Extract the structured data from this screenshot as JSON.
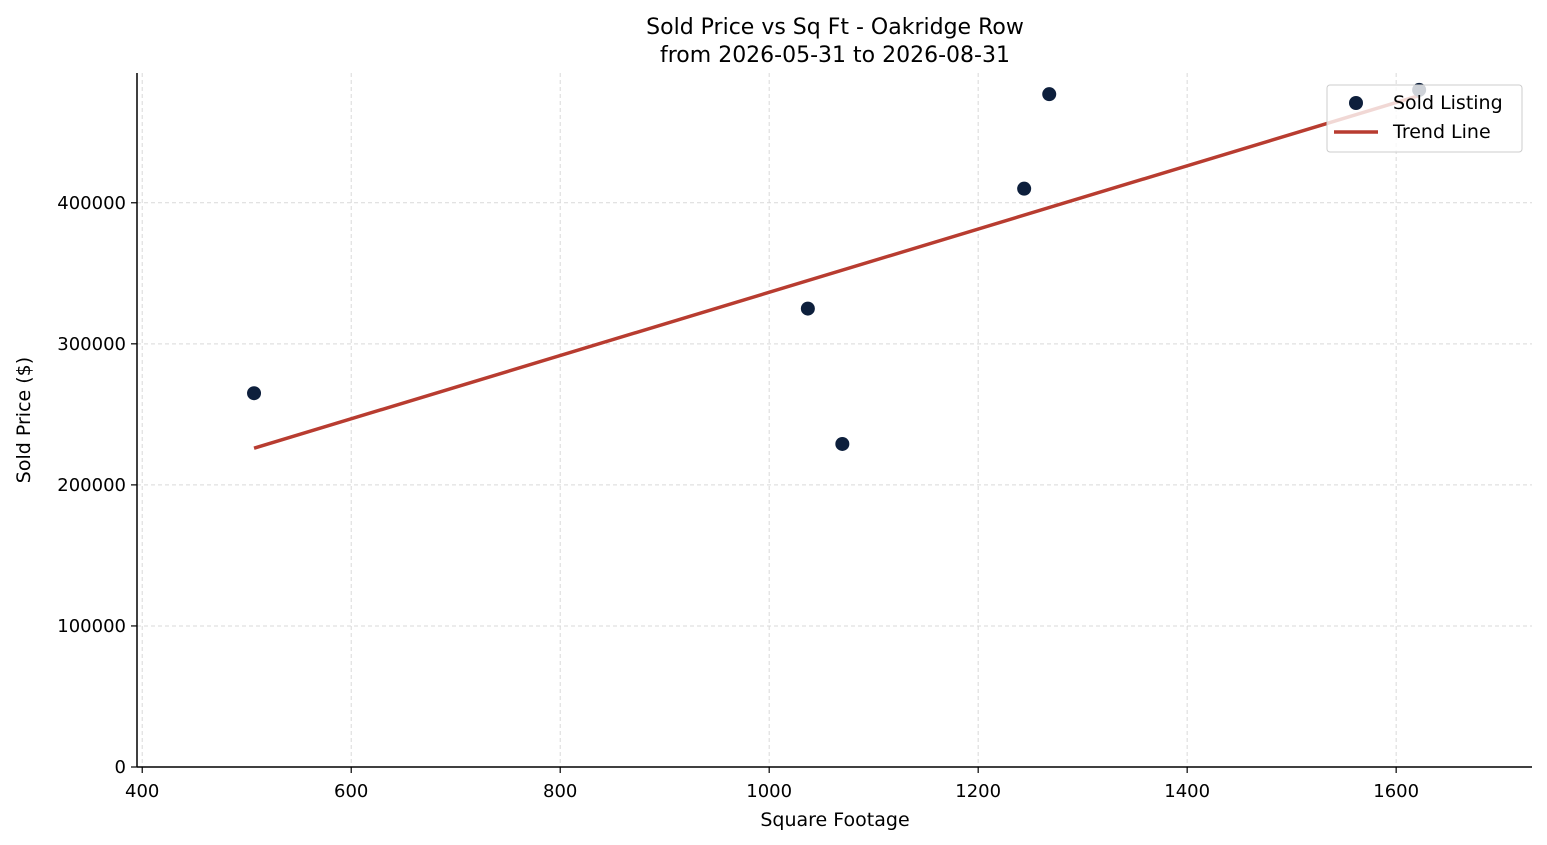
{
  "chart_data": {
    "type": "scatter",
    "title": "Sold Price vs Sq Ft - Oakridge Row",
    "subtitle": "from 2026-05-31 to 2026-08-31",
    "xlabel": "Square Footage",
    "ylabel": "Sold Price ($)",
    "xlim": [
      395,
      1730
    ],
    "ylim": [
      0,
      492000
    ],
    "xticks": [
      400,
      600,
      800,
      1000,
      1200,
      1400,
      1600
    ],
    "yticks": [
      0,
      100000,
      200000,
      300000,
      400000
    ],
    "grid": true,
    "legend_position": "top-right",
    "series": [
      {
        "name": "Sold Listing",
        "kind": "scatter",
        "color": "#0d1f3c",
        "points": [
          {
            "x": 507,
            "y": 265000
          },
          {
            "x": 1037,
            "y": 325000
          },
          {
            "x": 1070,
            "y": 229000
          },
          {
            "x": 1244,
            "y": 410000
          },
          {
            "x": 1268,
            "y": 477000
          },
          {
            "x": 1622,
            "y": 480000
          }
        ]
      },
      {
        "name": "Trend Line",
        "kind": "line",
        "color": "#b83c30",
        "points": [
          {
            "x": 507,
            "y": 226000
          },
          {
            "x": 1622,
            "y": 476000
          }
        ]
      }
    ]
  }
}
